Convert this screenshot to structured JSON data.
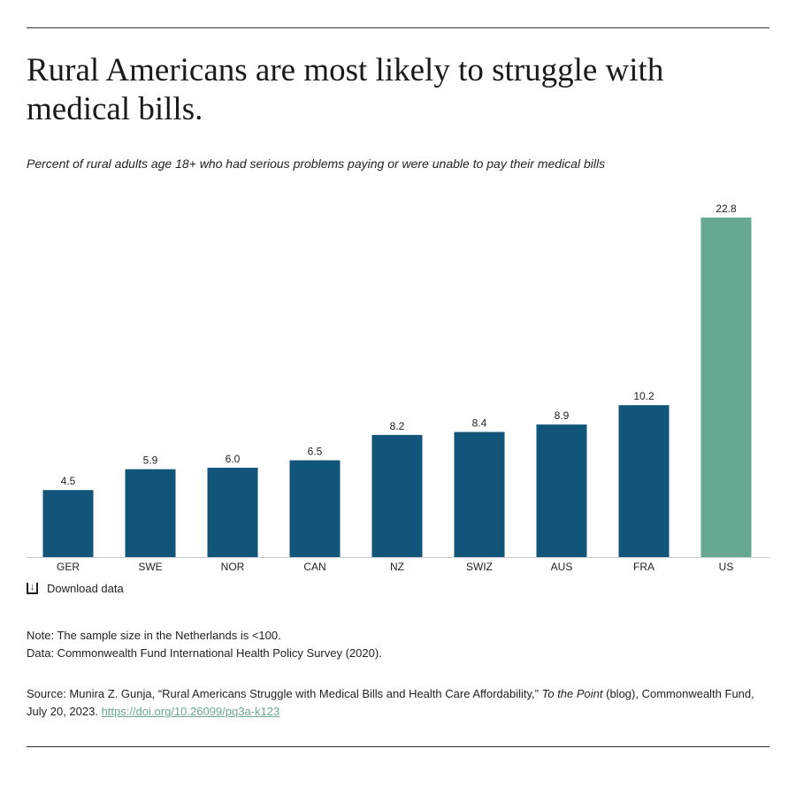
{
  "title": "Rural Americans are most likely to struggle with medical bills.",
  "subtitle": "Percent of rural adults age 18+ who had serious problems paying or were unable to pay their medical bills",
  "download_label": "Download data",
  "icons": {
    "download": "download-icon"
  },
  "note": "Note: The sample size in the Netherlands is <100.",
  "data_line": "Data: Commonwealth Fund International Health Policy Survey (2020).",
  "source": {
    "prefix": "Source: Munira Z. Gunja, “Rural Americans Struggle with Medical Bills and Health Care Affordability,” ",
    "publication": "To the Point",
    "suffix": " (blog), Commonwealth Fund, July 20, 2023. ",
    "link": "https://doi.org/10.26099/pq3a-k123"
  },
  "colors": {
    "default_bar": "#12557a",
    "highlight_bar": "#67a893",
    "link": "#67a893"
  },
  "chart_data": {
    "type": "bar",
    "categories": [
      "GER",
      "SWE",
      "NOR",
      "CAN",
      "NZ",
      "SWIZ",
      "AUS",
      "FRA",
      "US"
    ],
    "values": [
      4.5,
      5.9,
      6.0,
      6.5,
      8.2,
      8.4,
      8.9,
      10.2,
      22.8
    ],
    "value_labels": [
      "4.5",
      "5.9",
      "6.0",
      "6.5",
      "8.2",
      "8.4",
      "8.9",
      "10.2",
      "22.8"
    ],
    "highlight": "US",
    "ylim": [
      0,
      22.8
    ],
    "grid": false
  }
}
